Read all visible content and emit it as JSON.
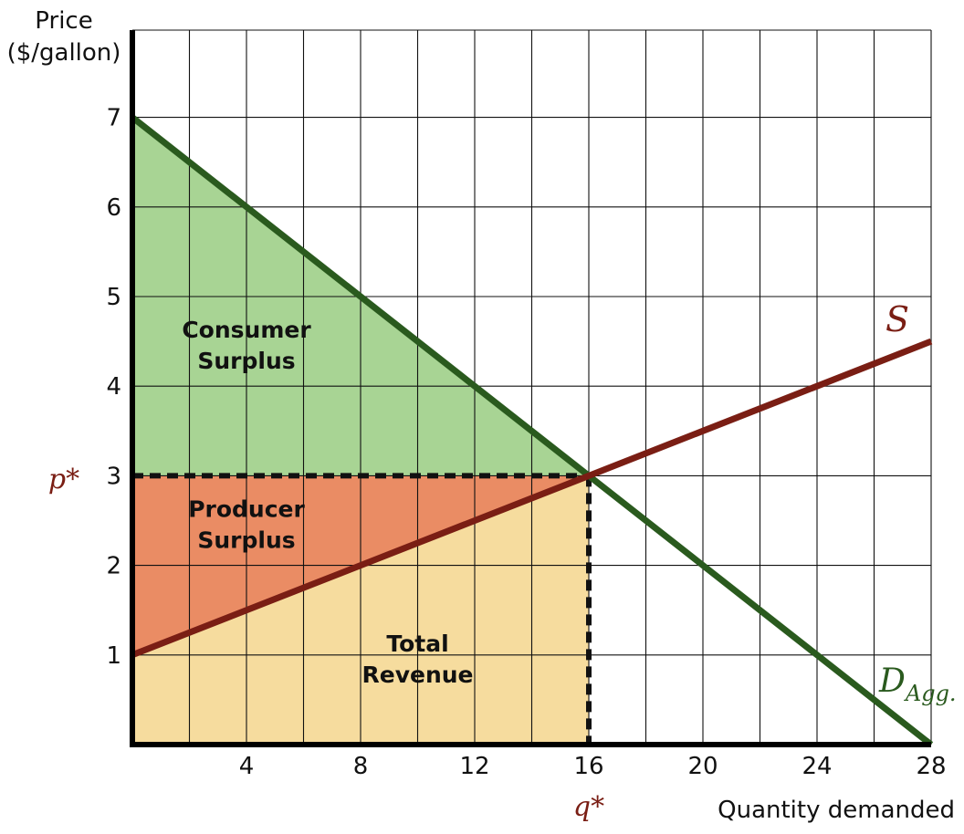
{
  "chart_data": {
    "type": "line",
    "title": "",
    "ylabel": "Price ($/gallon)",
    "xlabel": "Quantity demanded",
    "xlim": [
      0,
      28
    ],
    "ylim": [
      0,
      7
    ],
    "xticks": [
      4,
      8,
      12,
      16,
      20,
      24,
      28
    ],
    "yticks": [
      1,
      2,
      3,
      4,
      5,
      6,
      7
    ],
    "grid": true,
    "grid_x_step": 2,
    "grid_y_step": 1,
    "series": [
      {
        "name": "Aggregate demand",
        "label_main": "D",
        "label_sub": "Agg.",
        "color": "#2a5a1e",
        "points": [
          [
            0,
            7
          ],
          [
            28,
            0
          ]
        ]
      },
      {
        "name": "Supply",
        "label_main": "S",
        "color": "#7a1e14",
        "points": [
          [
            0,
            1
          ],
          [
            28,
            4.5
          ]
        ]
      }
    ],
    "equilibrium": {
      "q": 16,
      "p": 3,
      "q_label": "q*",
      "p_label": "p*"
    },
    "regions": [
      {
        "name": "Consumer Surplus",
        "lines": [
          "Consumer",
          "Surplus"
        ],
        "color": "#a8d494",
        "label_at": [
          4,
          4.5
        ],
        "polygon": [
          [
            0,
            7
          ],
          [
            0,
            3
          ],
          [
            16,
            3
          ]
        ]
      },
      {
        "name": "Producer Surplus",
        "lines": [
          "Producer",
          "Surplus"
        ],
        "color": "#ea8c64",
        "label_at": [
          4,
          2.5
        ],
        "polygon": [
          [
            0,
            3
          ],
          [
            16,
            3
          ],
          [
            0,
            1
          ]
        ]
      },
      {
        "name": "Total Revenue",
        "lines": [
          "Total",
          "Revenue"
        ],
        "color": "#f6dc9e",
        "label_at": [
          10,
          1
        ],
        "polygon": [
          [
            0,
            1
          ],
          [
            16,
            3
          ],
          [
            16,
            0
          ],
          [
            0,
            0
          ]
        ]
      }
    ]
  }
}
